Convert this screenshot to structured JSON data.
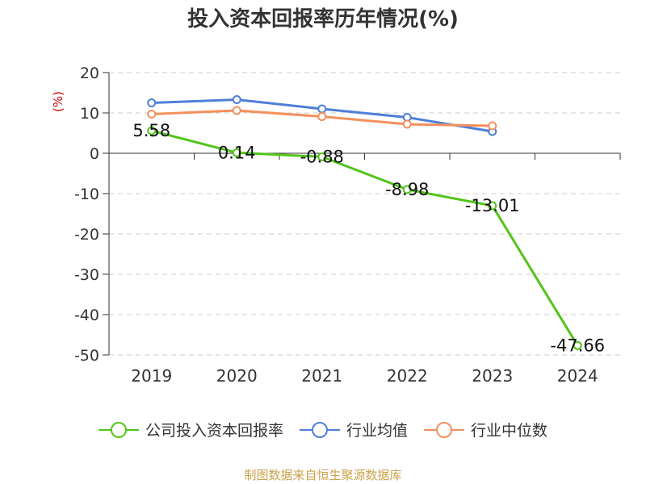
{
  "chart_data": {
    "type": "line",
    "title": "投入资本回报率历年情况(%)",
    "ylabel": "(%)",
    "xlabel": "",
    "categories": [
      "2019",
      "2020",
      "2021",
      "2022",
      "2023",
      "2024"
    ],
    "ylim": [
      -50,
      20
    ],
    "yticks": [
      20,
      10,
      0,
      -10,
      -20,
      -30,
      -40,
      -50
    ],
    "grid": "dashed-horizontal",
    "legend_position": "bottom",
    "series": [
      {
        "name": "公司投入资本回报率",
        "color": "#52c41a",
        "values": [
          5.58,
          0.14,
          -0.88,
          -8.98,
          -13.01,
          -47.66
        ],
        "labels": [
          "5.58",
          "0.14",
          "-0.88",
          "-8.98",
          "-13.01",
          "-47.66"
        ]
      },
      {
        "name": "行业均值",
        "color": "#4e7fd8",
        "values": [
          12.5,
          13.3,
          11.0,
          8.9,
          5.4,
          null
        ]
      },
      {
        "name": "行业中位数",
        "color": "#f4905d",
        "values": [
          9.7,
          10.6,
          9.1,
          7.2,
          6.8,
          null
        ]
      }
    ]
  },
  "source": "制图数据来自恒生聚源数据库"
}
